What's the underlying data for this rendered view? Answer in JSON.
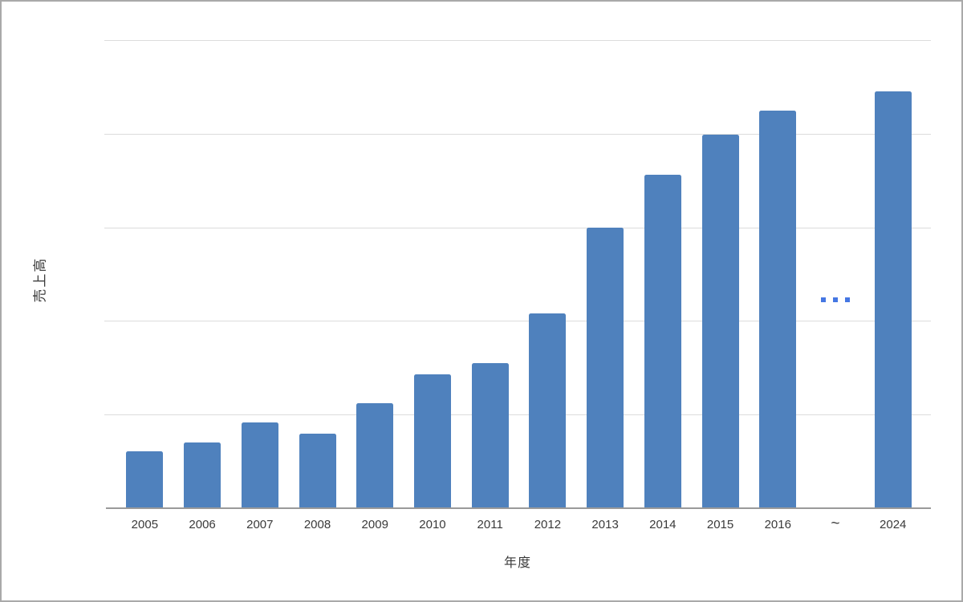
{
  "chart_data": {
    "type": "bar",
    "title": "",
    "xlabel": "年度",
    "ylabel": "売上高",
    "categories": [
      "2005",
      "2006",
      "2007",
      "2008",
      "2009",
      "2010",
      "2011",
      "2012",
      "2013",
      "2014",
      "2015",
      "2016",
      "~",
      "2024"
    ],
    "values": [
      0.61,
      0.7,
      0.92,
      0.8,
      1.12,
      1.43,
      1.55,
      2.08,
      3.0,
      3.56,
      3.99,
      4.25,
      null,
      4.45
    ],
    "ylim": [
      0,
      5
    ],
    "grid": "horizontal gridlines every 1 unit, no numeric y tick labels",
    "legend": "none",
    "break_marker": {
      "tick_label": "~",
      "dots_count": 3
    },
    "colors": {
      "bar": "#4F81BD",
      "dots": "#4577E3",
      "gridline": "#DCDCDC",
      "axis_line": "#9A9A9A",
      "label_text": "#3A3A3A",
      "canvas_border": "#A9A9A9",
      "background": "#FFFFFF"
    }
  }
}
